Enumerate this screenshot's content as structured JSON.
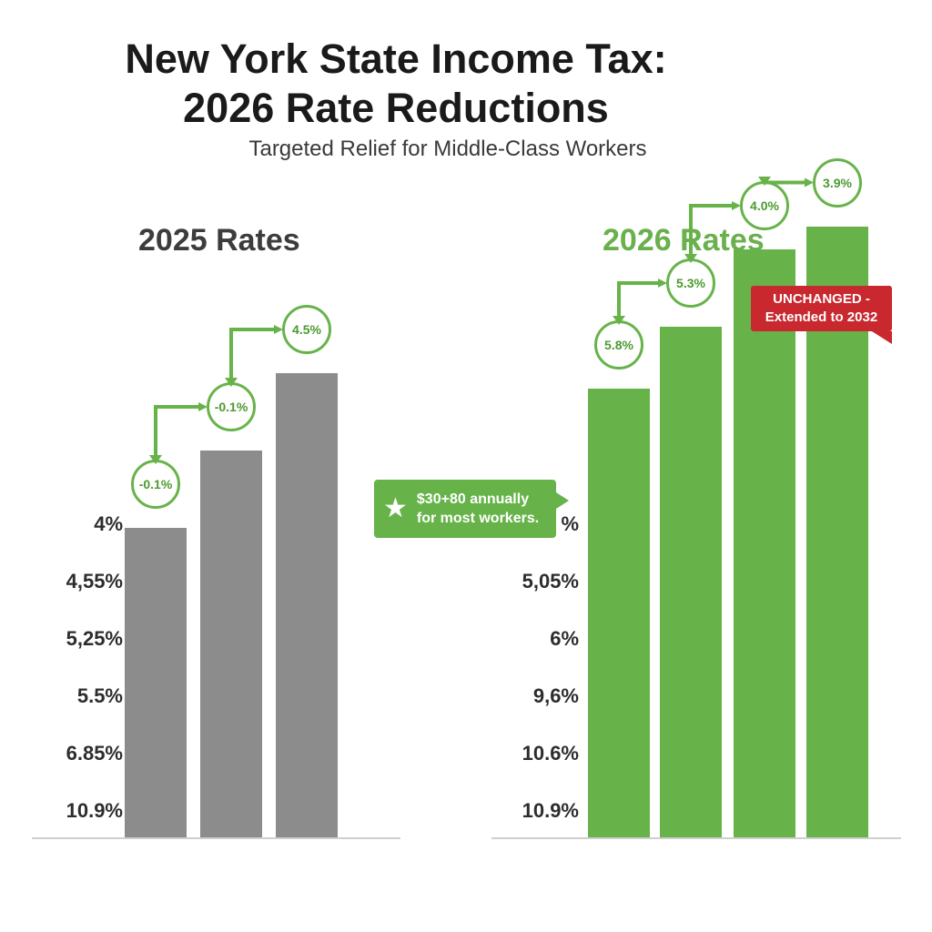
{
  "chart_data": [
    {
      "type": "bar",
      "title": "2025 Rates",
      "y_tick_labels": [
        "4%",
        "4,55%",
        "5,25%",
        "5.5%",
        "6.85%",
        "10.9%"
      ],
      "series": [
        {
          "values": [
            4.0,
            5.0,
            6.0
          ]
        }
      ],
      "annotations": [
        "-0.1%",
        "-0.1%",
        "4.5%"
      ],
      "color": "#8c8c8c"
    },
    {
      "type": "bar",
      "title": "2026 Rates",
      "y_tick_labels": [
        "%",
        "5,05%",
        "6%",
        "9,6%",
        "10.6%",
        "10.9%"
      ],
      "series": [
        {
          "values": [
            5.8,
            6.6,
            7.6,
            7.9
          ]
        }
      ],
      "annotations": [
        "5.8%",
        "5.3%",
        "4.0%",
        "3.9%"
      ],
      "color": "#67b34a"
    }
  ],
  "header": {
    "title_line1": "New York State Income Tax:",
    "title_line2": "2026 Rate Reductions",
    "subtitle": "Targeted Relief for Middle-Class Workers"
  },
  "callouts": {
    "savings": {
      "line1": "$30+80 annually",
      "line2": "for most workers.",
      "icon": "star-icon",
      "color": "#67b34a"
    },
    "unchanged": {
      "line1": "UNCHANGED -",
      "line2": "Extended to 2032",
      "color": "#c8282e"
    }
  }
}
